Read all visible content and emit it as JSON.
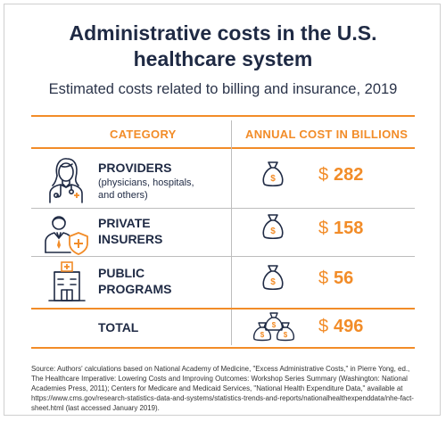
{
  "title_line1": "Administrative costs in the U.S.",
  "title_line2": "healthcare system",
  "subtitle": "Estimated costs related to billing and insurance, 2019",
  "headers": {
    "category": "CATEGORY",
    "cost": "ANNUAL COST IN BILLIONS"
  },
  "currency_symbol": "$",
  "accent_color": "#f28c28",
  "navy_color": "#1f2a44",
  "chart_data": {
    "type": "table",
    "columns": [
      "CATEGORY",
      "ANNUAL COST IN BILLIONS"
    ],
    "rows": [
      {
        "category": "PROVIDERS",
        "note": "(physicians, hospitals, and others)",
        "value": 282,
        "icon": "doctor-icon"
      },
      {
        "category": "PRIVATE INSURERS",
        "value": 158,
        "icon": "insurer-shield-icon"
      },
      {
        "category": "PUBLIC PROGRAMS",
        "value": 56,
        "icon": "public-building-icon"
      }
    ],
    "total": {
      "category": "TOTAL",
      "value": 496,
      "icon": "money-bags-icon"
    },
    "unit": "billions USD"
  },
  "rows_display": {
    "providers": {
      "name_line1": "PROVIDERS",
      "note_line1": "(physicians, hospitals,",
      "note_line2": "and others)",
      "amount": "282"
    },
    "private": {
      "name_line1": "PRIVATE",
      "name_line2": "INSURERS",
      "amount": "158"
    },
    "public": {
      "name_line1": "PUBLIC",
      "name_line2": "PROGRAMS",
      "amount": "56"
    },
    "total": {
      "name": "TOTAL",
      "amount": "496"
    }
  },
  "source": "Source: Authors' calculations based on National Academy of Medicine, \"Excess Administrative Costs,\" in Pierre Yong, ed., The Healthcare Imperative: Lowering Costs and Improving Outcomes: Workshop Series Summary (Washington: National Academies Press, 2011); Centers for Medicare and Medicaid Services, \"National Health Expenditure Data,\" available at https://www.cms.gov/research-statistics-data-and-systems/statistics-trends-and-reports/nationalhealthexpenddata/nhe-fact-sheet.html (last accessed January 2019)."
}
